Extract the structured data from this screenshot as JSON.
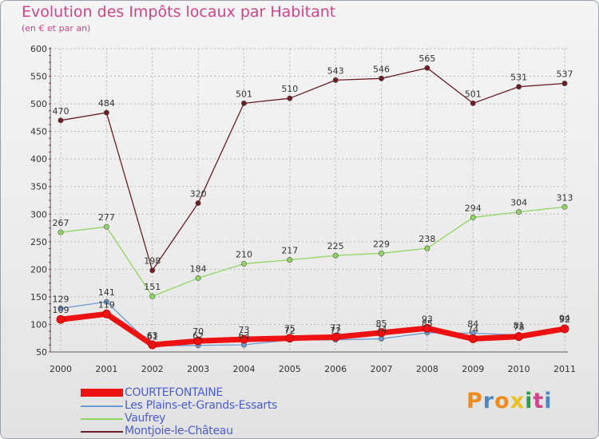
{
  "title": "Evolution des Impôts locaux par Habitant",
  "subtitle": "(en € et par an)",
  "chart_data": {
    "type": "line",
    "title": "Evolution des Impôts locaux par Habitant",
    "subtitle": "(en € et par an)",
    "categories": [
      "2000",
      "2001",
      "2002",
      "2003",
      "2004",
      "2005",
      "2006",
      "2007",
      "2008",
      "2009",
      "2010",
      "2011"
    ],
    "ylim": [
      50,
      600
    ],
    "yticks": [
      50,
      100,
      150,
      200,
      250,
      300,
      350,
      400,
      450,
      500,
      550,
      600
    ],
    "grid": true,
    "legend_position": "bottom-left",
    "series": [
      {
        "name": "Montjoie-le-Château",
        "color": "#6b1f25",
        "values": [
          470,
          484,
          198,
          320,
          501,
          510,
          543,
          546,
          565,
          501,
          531,
          537
        ],
        "labels": [
          "470",
          "484",
          "198",
          "320",
          "501",
          "510",
          "543",
          "546",
          "565",
          "501",
          "531",
          "537"
        ]
      },
      {
        "name": "Vaufrey",
        "color": "#8ed660",
        "values": [
          267,
          277,
          151,
          184,
          210,
          217,
          225,
          229,
          238,
          294,
          304,
          313
        ],
        "labels": [
          "267",
          "277",
          "151",
          "184",
          "210",
          "217",
          "225",
          "229",
          "238",
          "294",
          "304",
          "313"
        ]
      },
      {
        "name": "Les Plains-et-Grands-Essarts",
        "color": "#6c9bd2",
        "values": [
          129,
          141,
          61,
          62,
          63,
          72,
          72,
          74,
          85,
          84,
          81,
          94
        ],
        "labels": [
          "129",
          "141",
          "61",
          "62",
          "63",
          "72",
          "72",
          "74",
          "85",
          "84",
          "81",
          "94"
        ]
      },
      {
        "name": "COURTEFONTAINE",
        "color": "#ee1111",
        "values": [
          109,
          119,
          63,
          70,
          73,
          75,
          77,
          85,
          93,
          74,
          78,
          92
        ],
        "labels": [
          "109",
          "119",
          "63",
          "70",
          "73",
          "75",
          "77",
          "85",
          "93",
          "74",
          "78",
          "92"
        ]
      }
    ]
  },
  "legend": [
    {
      "label": "COURTEFONTAINE",
      "color": "#ee1111"
    },
    {
      "label": "Les Plains-et-Grands-Essarts",
      "color": "#6c9bd2"
    },
    {
      "label": "Vaufrey",
      "color": "#8ed660"
    },
    {
      "label": "Montjoie-le-Château",
      "color": "#6b1f25"
    }
  ],
  "logo": {
    "letters": [
      "P",
      "r",
      "o",
      "x",
      "i",
      "t",
      "i"
    ],
    "colors": [
      "#f08a1c",
      "#4a89c8",
      "#f08a1c",
      "#e8c021",
      "#2e9d4a",
      "#d0458a",
      "#4a89c8"
    ]
  }
}
